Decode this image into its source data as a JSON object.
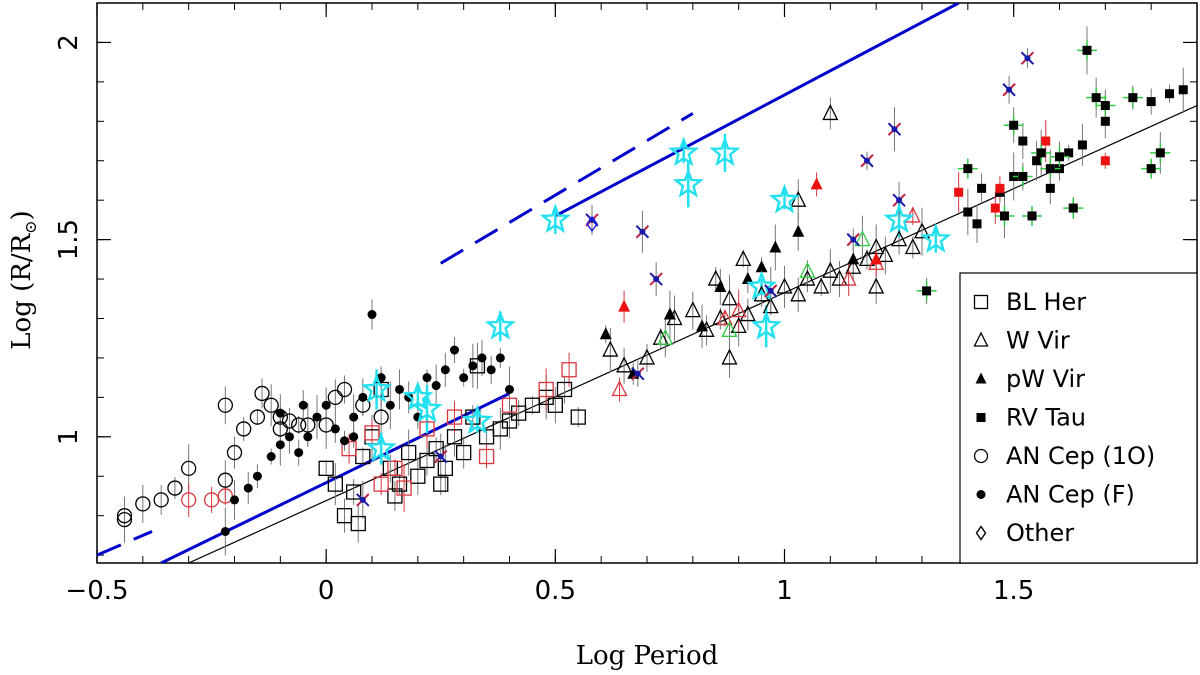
{
  "chart_data": {
    "type": "scatter",
    "xlabel": "Log Period",
    "ylabel": "Log (R/R",
    "ylabel_sub": "⊙",
    "ylabel_close": ")",
    "xlim": [
      -0.5,
      1.9
    ],
    "ylim": [
      0.68,
      2.1
    ],
    "x_ticks": [
      {
        "value": -0.5,
        "label": "−0.5"
      },
      {
        "value": 0,
        "label": "0"
      },
      {
        "value": 0.5,
        "label": "0.5"
      },
      {
        "value": 1,
        "label": "1"
      },
      {
        "value": 1.5,
        "label": "1.5"
      }
    ],
    "y_ticks": [
      {
        "value": 1,
        "label": "1"
      },
      {
        "value": 1.5,
        "label": "1.5"
      },
      {
        "value": 2,
        "label": "2"
      }
    ],
    "legend": [
      {
        "symbol": "open-square",
        "label": "BL Her"
      },
      {
        "symbol": "open-triangle",
        "label": "W Vir"
      },
      {
        "symbol": "filled-triangle",
        "label": "pW Vir"
      },
      {
        "symbol": "filled-square",
        "label": "RV Tau"
      },
      {
        "symbol": "open-circle",
        "label": "AN Cep (1O)"
      },
      {
        "symbol": "filled-circle",
        "label": "AN Cep (F)"
      },
      {
        "symbol": "open-diamond",
        "label": "Other"
      }
    ],
    "lines": [
      {
        "name": "fit-black",
        "color": "#000000",
        "style": "solid",
        "x": [
          -0.3,
          1.9
        ],
        "y": [
          0.68,
          1.84
        ]
      },
      {
        "name": "fit-blue-lower",
        "color": "#0000cc",
        "style": "solid",
        "x": [
          -0.36,
          0.4
        ],
        "y": [
          0.68,
          1.11
        ]
      },
      {
        "name": "fit-blue-upper",
        "color": "#0000cc",
        "style": "solid",
        "x": [
          0.5,
          1.38
        ],
        "y": [
          1.56,
          2.1
        ]
      },
      {
        "name": "fit-blue-dashed-lower",
        "color": "#0000cc",
        "style": "dashed",
        "x": [
          -0.5,
          -0.38
        ],
        "y": [
          0.7,
          0.76
        ]
      },
      {
        "name": "fit-blue-dashed-upper",
        "color": "#0000cc",
        "style": "dashed",
        "x": [
          0.25,
          0.8
        ],
        "y": [
          1.44,
          1.82
        ]
      }
    ],
    "series": [
      {
        "name": "BL Her",
        "marker": "open-square",
        "color": "#000000",
        "points": [
          [
            0.0,
            0.92
          ],
          [
            0.02,
            0.88
          ],
          [
            0.04,
            0.8
          ],
          [
            0.06,
            0.86
          ],
          [
            0.08,
            0.95
          ],
          [
            0.1,
            1.0
          ],
          [
            0.12,
            1.12
          ],
          [
            0.14,
            0.92
          ],
          [
            0.16,
            0.88
          ],
          [
            0.18,
            0.96
          ],
          [
            0.2,
            0.9
          ],
          [
            0.22,
            0.94
          ],
          [
            0.24,
            0.97
          ],
          [
            0.26,
            0.92
          ],
          [
            0.28,
            1.0
          ],
          [
            0.3,
            0.96
          ],
          [
            0.32,
            1.05
          ],
          [
            0.35,
            1.0
          ],
          [
            0.38,
            1.02
          ],
          [
            0.4,
            1.04
          ],
          [
            0.42,
            1.06
          ],
          [
            0.45,
            1.08
          ],
          [
            0.48,
            1.1
          ],
          [
            0.5,
            1.08
          ],
          [
            0.52,
            1.12
          ],
          [
            0.55,
            1.05
          ],
          [
            0.33,
            1.18
          ],
          [
            0.07,
            0.78
          ],
          [
            0.15,
            0.85
          ],
          [
            0.25,
            0.88
          ]
        ]
      },
      {
        "name": "BL Her (red)",
        "marker": "open-square",
        "color": "#d9363e",
        "points": [
          [
            0.05,
            0.97
          ],
          [
            0.12,
            0.88
          ],
          [
            0.17,
            0.87
          ],
          [
            0.22,
            1.02
          ],
          [
            0.28,
            1.05
          ],
          [
            0.35,
            0.95
          ],
          [
            0.4,
            1.08
          ],
          [
            0.48,
            1.12
          ],
          [
            0.53,
            1.17
          ],
          [
            0.1,
            1.01
          ],
          [
            0.15,
            0.92
          ]
        ]
      },
      {
        "name": "W Vir",
        "marker": "open-triangle",
        "color": "#000000",
        "points": [
          [
            0.62,
            1.22
          ],
          [
            0.65,
            1.18
          ],
          [
            0.7,
            1.2
          ],
          [
            0.73,
            1.25
          ],
          [
            0.76,
            1.3
          ],
          [
            0.8,
            1.32
          ],
          [
            0.83,
            1.27
          ],
          [
            0.86,
            1.3
          ],
          [
            0.88,
            1.35
          ],
          [
            0.9,
            1.28
          ],
          [
            0.92,
            1.31
          ],
          [
            0.95,
            1.36
          ],
          [
            0.97,
            1.33
          ],
          [
            1.0,
            1.38
          ],
          [
            1.03,
            1.36
          ],
          [
            1.05,
            1.4
          ],
          [
            1.08,
            1.38
          ],
          [
            1.1,
            1.42
          ],
          [
            1.12,
            1.4
          ],
          [
            1.15,
            1.43
          ],
          [
            1.18,
            1.45
          ],
          [
            1.2,
            1.48
          ],
          [
            1.22,
            1.46
          ],
          [
            1.25,
            1.5
          ],
          [
            1.28,
            1.48
          ],
          [
            1.3,
            1.52
          ],
          [
            0.88,
            1.2
          ],
          [
            1.1,
            1.82
          ],
          [
            0.85,
            1.4
          ],
          [
            0.91,
            1.45
          ],
          [
            1.03,
            1.6
          ],
          [
            1.2,
            1.38
          ]
        ]
      },
      {
        "name": "W Vir (red)",
        "marker": "open-triangle",
        "color": "#d9363e",
        "points": [
          [
            0.64,
            1.12
          ],
          [
            0.87,
            1.3
          ],
          [
            0.9,
            1.32
          ],
          [
            1.14,
            1.4
          ],
          [
            1.2,
            1.44
          ],
          [
            1.28,
            1.56
          ]
        ]
      },
      {
        "name": "W Vir (green)",
        "marker": "open-triangle",
        "color": "#2ecc40",
        "points": [
          [
            0.74,
            1.25
          ],
          [
            0.88,
            1.27
          ],
          [
            1.05,
            1.42
          ],
          [
            1.17,
            1.5
          ]
        ]
      },
      {
        "name": "pW Vir",
        "marker": "filled-triangle",
        "color": "#000000",
        "points": [
          [
            0.61,
            1.26
          ],
          [
            0.82,
            1.28
          ],
          [
            0.86,
            1.38
          ],
          [
            0.92,
            1.4
          ],
          [
            0.95,
            1.43
          ],
          [
            0.98,
            1.48
          ],
          [
            1.03,
            1.52
          ],
          [
            1.15,
            1.45
          ],
          [
            0.67,
            1.16
          ],
          [
            0.75,
            1.31
          ]
        ]
      },
      {
        "name": "pW Vir (red)",
        "marker": "filled-triangle",
        "color": "#ee1111",
        "points": [
          [
            0.65,
            1.33
          ],
          [
            1.07,
            1.64
          ],
          [
            1.2,
            1.45
          ]
        ]
      },
      {
        "name": "RV Tau",
        "marker": "filled-square",
        "color": "#000000",
        "points": [
          [
            1.4,
            1.57
          ],
          [
            1.42,
            1.54
          ],
          [
            1.43,
            1.63
          ],
          [
            1.47,
            1.62
          ],
          [
            1.5,
            1.66
          ],
          [
            1.55,
            1.7
          ],
          [
            1.58,
            1.63
          ],
          [
            1.6,
            1.68
          ],
          [
            1.62,
            1.72
          ],
          [
            1.65,
            1.74
          ],
          [
            1.7,
            1.8
          ],
          [
            1.8,
            1.85
          ],
          [
            1.84,
            1.87
          ],
          [
            1.87,
            1.88
          ],
          [
            1.52,
            1.75
          ]
        ]
      },
      {
        "name": "RV Tau (green)",
        "marker": "filled-square",
        "color": "#000000",
        "edge": "#2ecc40",
        "points": [
          [
            1.31,
            1.37
          ],
          [
            1.4,
            1.68
          ],
          [
            1.48,
            1.56
          ],
          [
            1.5,
            1.79
          ],
          [
            1.52,
            1.66
          ],
          [
            1.54,
            1.56
          ],
          [
            1.56,
            1.72
          ],
          [
            1.58,
            1.68
          ],
          [
            1.6,
            1.71
          ],
          [
            1.63,
            1.58
          ],
          [
            1.66,
            1.98
          ],
          [
            1.68,
            1.86
          ],
          [
            1.7,
            1.84
          ],
          [
            1.76,
            1.86
          ],
          [
            1.8,
            1.68
          ],
          [
            1.82,
            1.72
          ]
        ]
      },
      {
        "name": "RV Tau (red)",
        "marker": "filled-square",
        "color": "#ee1111",
        "points": [
          [
            1.38,
            1.62
          ],
          [
            1.46,
            1.58
          ],
          [
            1.47,
            1.63
          ],
          [
            1.7,
            1.7
          ],
          [
            1.57,
            1.75
          ]
        ]
      },
      {
        "name": "AN Cep (1O)",
        "marker": "open-circle",
        "color": "#000000",
        "points": [
          [
            -0.44,
            0.8
          ],
          [
            -0.44,
            0.79
          ],
          [
            -0.4,
            0.83
          ],
          [
            -0.36,
            0.84
          ],
          [
            -0.33,
            0.87
          ],
          [
            -0.3,
            0.92
          ],
          [
            -0.22,
            0.89
          ],
          [
            -0.2,
            0.96
          ],
          [
            -0.18,
            1.02
          ],
          [
            -0.15,
            1.05
          ],
          [
            -0.12,
            1.08
          ],
          [
            -0.1,
            1.02
          ],
          [
            -0.08,
            1.04
          ],
          [
            -0.06,
            1.03
          ],
          [
            -0.04,
            1.03
          ],
          [
            0.02,
            1.1
          ],
          [
            0.04,
            1.12
          ],
          [
            0.08,
            1.08
          ],
          [
            0.12,
            1.05
          ],
          [
            -0.22,
            1.08
          ],
          [
            -0.14,
            1.11
          ],
          [
            -0.1,
            1.05
          ],
          [
            0.0,
            1.03
          ]
        ]
      },
      {
        "name": "AN Cep (1O) (red)",
        "marker": "open-circle",
        "color": "#d9363e",
        "points": [
          [
            -0.3,
            0.84
          ],
          [
            -0.25,
            0.84
          ],
          [
            -0.22,
            0.85
          ]
        ]
      },
      {
        "name": "AN Cep (F)",
        "marker": "filled-circle",
        "color": "#000000",
        "points": [
          [
            -0.22,
            0.76
          ],
          [
            -0.2,
            0.84
          ],
          [
            -0.17,
            0.87
          ],
          [
            -0.15,
            0.9
          ],
          [
            -0.12,
            0.95
          ],
          [
            -0.1,
            0.98
          ],
          [
            -0.08,
            1.0
          ],
          [
            -0.06,
            0.96
          ],
          [
            -0.04,
            1.0
          ],
          [
            -0.02,
            1.05
          ],
          [
            0.0,
            1.08
          ],
          [
            0.02,
            1.02
          ],
          [
            0.04,
            0.99
          ],
          [
            0.06,
            1.05
          ],
          [
            0.08,
            1.1
          ],
          [
            0.1,
            1.31
          ],
          [
            0.12,
            1.15
          ],
          [
            0.14,
            1.08
          ],
          [
            0.16,
            1.12
          ],
          [
            0.18,
            1.1
          ],
          [
            0.2,
            1.05
          ],
          [
            0.22,
            1.15
          ],
          [
            0.24,
            1.13
          ],
          [
            0.26,
            1.17
          ],
          [
            0.28,
            1.22
          ],
          [
            0.3,
            1.15
          ],
          [
            0.32,
            1.18
          ],
          [
            0.34,
            1.2
          ],
          [
            0.36,
            1.17
          ],
          [
            0.38,
            1.2
          ],
          [
            0.4,
            1.12
          ],
          [
            -0.1,
            1.06
          ],
          [
            -0.05,
            1.08
          ],
          [
            0.06,
            1.0
          ]
        ]
      },
      {
        "name": "Other (cyan stars)",
        "marker": "open-star",
        "color": "#22e0f0",
        "points": [
          [
            0.5,
            1.55
          ],
          [
            0.78,
            1.72
          ],
          [
            0.79,
            1.64
          ],
          [
            0.87,
            1.72
          ],
          [
            0.38,
            1.28
          ],
          [
            0.2,
            1.1
          ],
          [
            0.22,
            1.07
          ],
          [
            0.11,
            1.12
          ],
          [
            0.12,
            0.97
          ],
          [
            0.33,
            1.04
          ],
          [
            0.95,
            1.38
          ],
          [
            0.96,
            1.28
          ],
          [
            1.25,
            1.55
          ],
          [
            1.33,
            1.5
          ],
          [
            1.0,
            1.6
          ]
        ]
      },
      {
        "name": "Other (x marks)",
        "marker": "x-mark",
        "color": "#c02040",
        "points": [
          [
            0.69,
            1.52
          ],
          [
            0.72,
            1.4
          ],
          [
            0.68,
            1.16
          ],
          [
            1.18,
            1.7
          ],
          [
            1.24,
            1.78
          ],
          [
            1.25,
            1.6
          ],
          [
            1.49,
            1.88
          ],
          [
            1.53,
            1.96
          ],
          [
            0.25,
            0.95
          ],
          [
            0.08,
            0.84
          ],
          [
            0.58,
            1.55
          ],
          [
            1.15,
            1.5
          ],
          [
            0.97,
            1.37
          ]
        ]
      },
      {
        "name": "Other (diamond)",
        "marker": "open-diamond",
        "color": "#1a1aee",
        "points": [
          [
            0.58,
            1.54
          ]
        ]
      }
    ]
  }
}
